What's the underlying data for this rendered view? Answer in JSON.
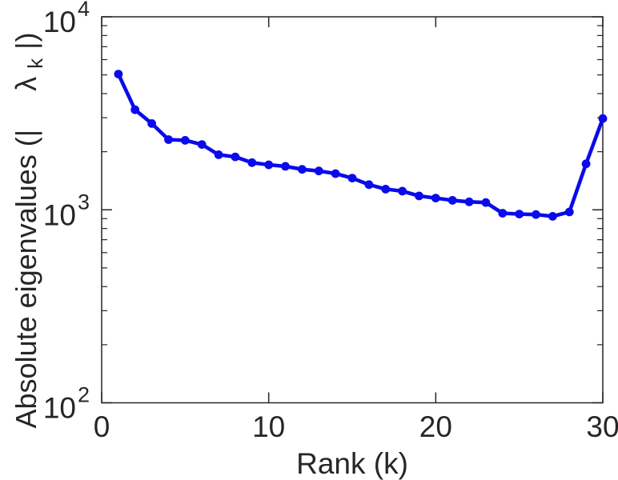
{
  "chart_data": {
    "type": "line",
    "title": "",
    "xlabel": "Rank (k)",
    "ylabel": "Absolute eigenvalues (| λk|)",
    "ylabel_parts": {
      "prefix": "Absolute eigenvalues (|",
      "symbol": "λ",
      "subscript": "k",
      "suffix": "|)"
    },
    "series": [
      {
        "name": "absolute-eigenvalues",
        "x": [
          1,
          2,
          3,
          4,
          5,
          6,
          7,
          8,
          9,
          10,
          11,
          12,
          13,
          14,
          15,
          16,
          17,
          18,
          19,
          20,
          21,
          22,
          23,
          24,
          25,
          26,
          27,
          28,
          29,
          30
        ],
        "y": [
          5050,
          3300,
          2800,
          2310,
          2290,
          2180,
          1930,
          1880,
          1755,
          1710,
          1680,
          1620,
          1590,
          1540,
          1460,
          1350,
          1280,
          1250,
          1180,
          1150,
          1120,
          1100,
          1090,
          960,
          950,
          945,
          925,
          975,
          1730,
          2970
        ]
      }
    ],
    "x_ticks": [
      0,
      10,
      20,
      30
    ],
    "y_tick_base": "10",
    "y_tick_exponents": [
      2,
      3,
      4
    ],
    "xlim": [
      0,
      30
    ],
    "ylim_log10": [
      2,
      4
    ],
    "yscale": "log",
    "grid": false,
    "legend": "none",
    "marker": "circle",
    "line_color": "#0a0aec",
    "axis_color": "#262626",
    "background_color": "#ffffff"
  }
}
